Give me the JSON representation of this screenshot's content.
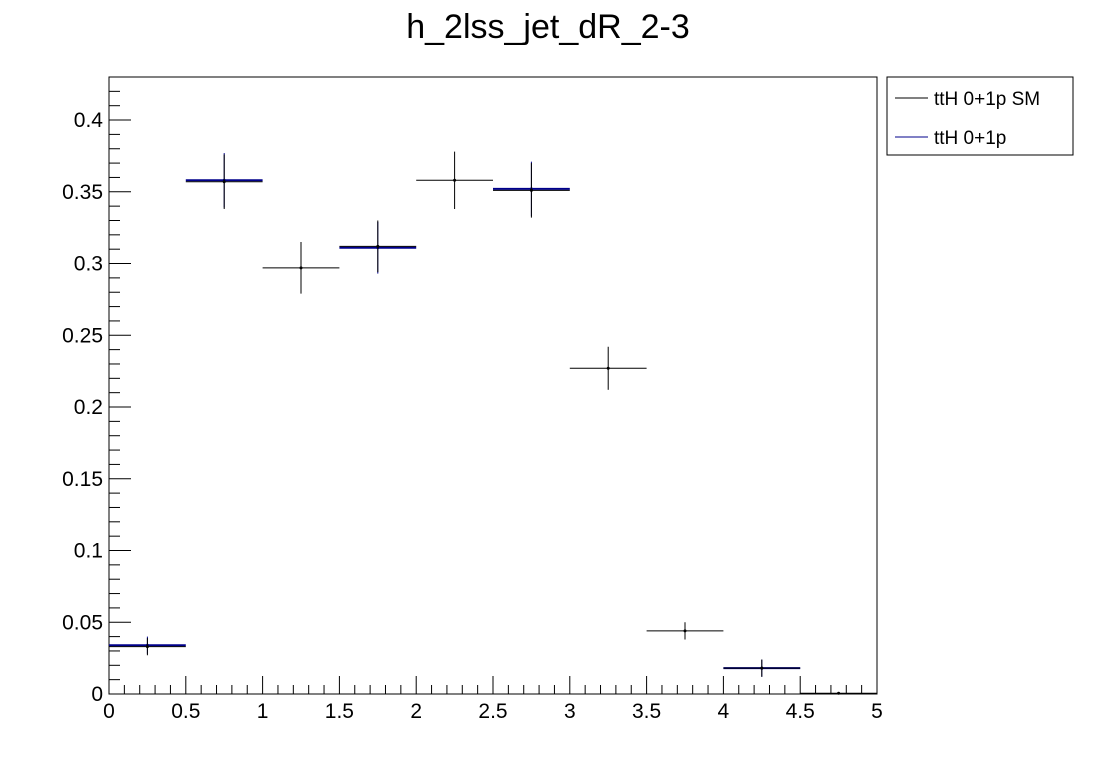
{
  "chart_data": {
    "type": "scatter",
    "title": "h_2lss_jet_dR_2-3",
    "xlim": [
      0,
      5
    ],
    "ylim": [
      0,
      0.43
    ],
    "x_ticks": [
      0,
      0.5,
      1,
      1.5,
      2,
      2.5,
      3,
      3.5,
      4,
      4.5,
      5
    ],
    "x_tick_labels": [
      "0",
      "0.5",
      "1",
      "1.5",
      "2",
      "2.5",
      "3",
      "3.5",
      "4",
      "4.5",
      "5"
    ],
    "y_ticks": [
      0,
      0.05,
      0.1,
      0.15,
      0.2,
      0.25,
      0.3,
      0.35,
      0.4
    ],
    "y_tick_labels": [
      "0",
      "0.05",
      "0.1",
      "0.15",
      "0.2",
      "0.25",
      "0.3",
      "0.35",
      "0.4"
    ],
    "legend_position": "top-right, outside plot",
    "bin_edges": [
      0,
      0.5,
      1,
      1.5,
      2,
      2.5,
      3,
      3.5,
      4,
      4.5,
      5
    ],
    "series": [
      {
        "name": "ttH 0+1p SM",
        "color": "#000000",
        "values": [
          0.033,
          0.357,
          0.297,
          0.312,
          0.358,
          0.351,
          0.227,
          0.044,
          0.018,
          0.0005
        ],
        "errors": [
          0.006,
          0.019,
          0.018,
          0.018,
          0.02,
          0.019,
          0.015,
          0.006,
          0.006,
          0.0005
        ]
      },
      {
        "name": "ttH 0+1p",
        "color": "#00008b",
        "values": [
          0.034,
          0.358,
          null,
          0.311,
          null,
          0.352,
          null,
          null,
          0.018,
          null
        ],
        "errors": [
          0.006,
          0.019,
          null,
          0.018,
          null,
          0.019,
          null,
          null,
          0.006,
          null
        ]
      }
    ]
  }
}
